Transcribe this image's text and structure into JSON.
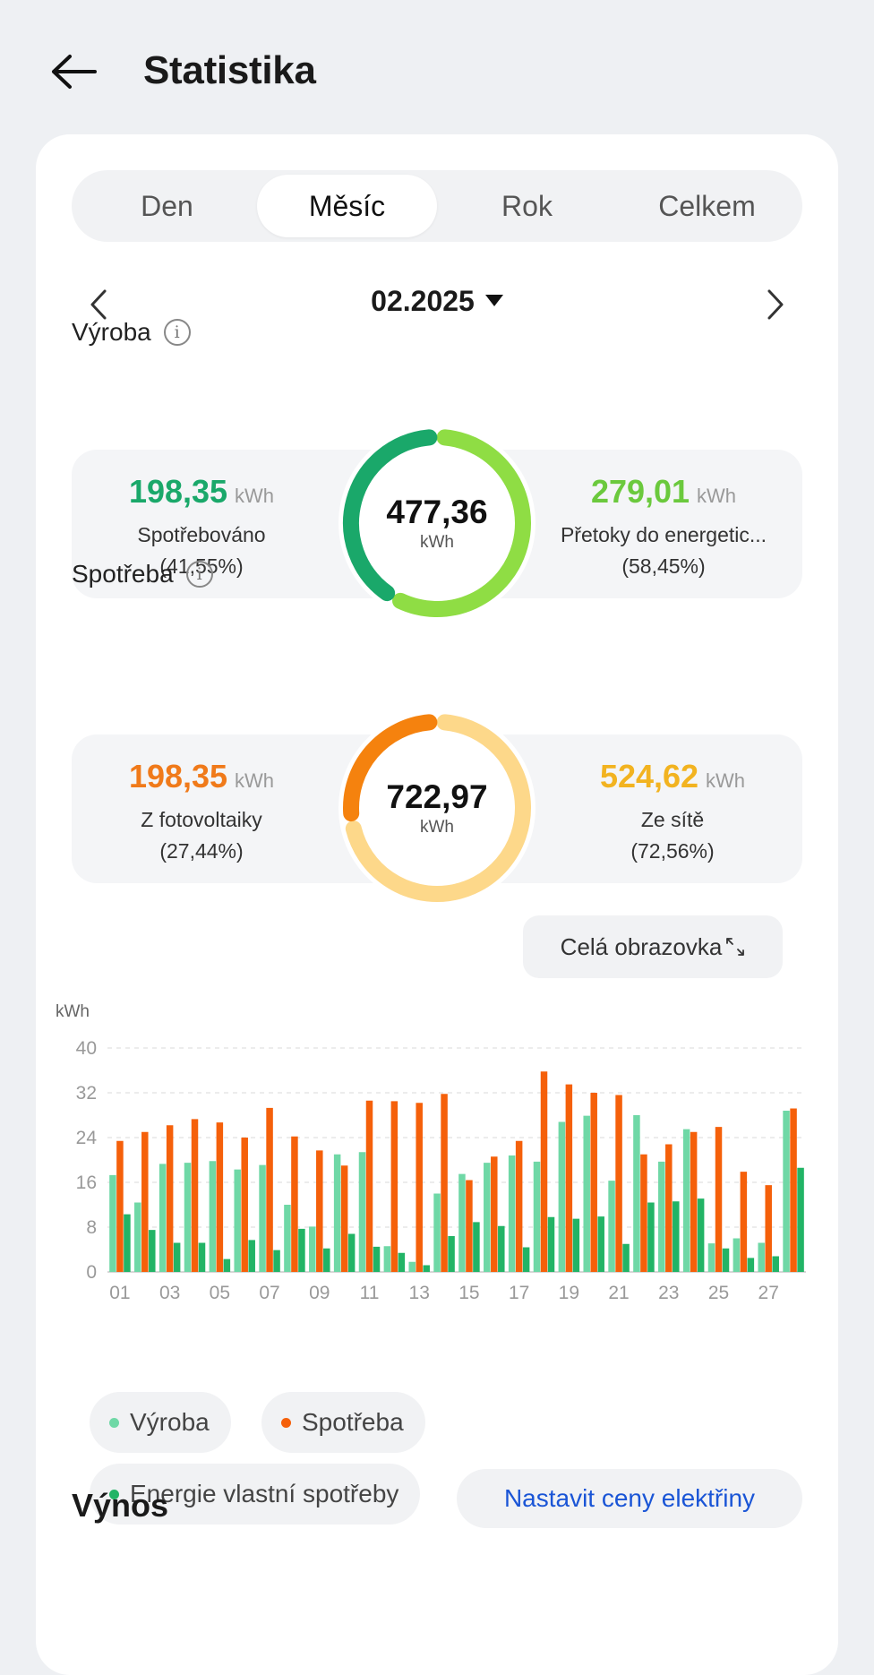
{
  "header": {
    "title": "Statistika",
    "back_icon": "back-arrow-icon"
  },
  "tabs": [
    {
      "label": "Den",
      "active": false
    },
    {
      "label": "Měsíc",
      "active": true
    },
    {
      "label": "Rok",
      "active": false
    },
    {
      "label": "Celkem",
      "active": false
    }
  ],
  "period": {
    "value": "02.2025"
  },
  "production": {
    "section_label": "Výroba",
    "total": "477,36",
    "unit": "kWh",
    "left": {
      "value": "198,35",
      "unit": "kWh",
      "label": "Spotřebováno",
      "percent": "(41,55%)",
      "share": 0.4155,
      "color": "#1aa86a"
    },
    "right": {
      "value": "279,01",
      "unit": "kWh",
      "label": "Přetoky do energetic...",
      "percent": "(58,45%)",
      "share": 0.5845,
      "color": "#6bc93d"
    }
  },
  "consumption": {
    "section_label": "Spotřeba",
    "total": "722,97",
    "unit": "kWh",
    "left": {
      "value": "198,35",
      "unit": "kWh",
      "label": "Z fotovoltaiky",
      "percent": "(27,44%)",
      "share": 0.2744,
      "color": "#f07a1a"
    },
    "right": {
      "value": "524,62",
      "unit": "kWh",
      "label": "Ze sítě",
      "percent": "(72,56%)",
      "share": 0.7256,
      "color": "#f2b320"
    }
  },
  "colors": {
    "production_ring_dark": "#1aa86a",
    "production_ring_light": "#8fdd44",
    "consumption_ring_dark": "#f5820e",
    "consumption_ring_light": "#fdd88a",
    "bar_vyroba": "#6fd8a6",
    "bar_spotreba": "#f5600a",
    "bar_vlastni": "#22b466",
    "link": "#1a55d6"
  },
  "fullscreen_button": {
    "label": "Celá obrazovka"
  },
  "chart_data": {
    "type": "bar",
    "ylabel": "kWh",
    "ylim": [
      0,
      40
    ],
    "yticks": [
      0,
      8,
      16,
      24,
      32,
      40
    ],
    "grid": true,
    "categories": [
      "01",
      "02",
      "03",
      "04",
      "05",
      "06",
      "07",
      "08",
      "09",
      "10",
      "11",
      "12",
      "13",
      "14",
      "15",
      "16",
      "17",
      "18",
      "19",
      "20",
      "21",
      "22",
      "23",
      "24",
      "25",
      "26",
      "27",
      "28"
    ],
    "x_tick_labels": [
      "01",
      "03",
      "05",
      "07",
      "09",
      "11",
      "13",
      "15",
      "17",
      "19",
      "21",
      "23",
      "25",
      "27"
    ],
    "series": [
      {
        "name": "Výroba",
        "values": [
          17.3,
          12.4,
          19.3,
          19.5,
          19.8,
          18.3,
          19.1,
          12.0,
          8.1,
          21.0,
          21.4,
          4.6,
          1.8,
          14.0,
          17.5,
          19.5,
          20.8,
          19.7,
          26.8,
          27.9,
          16.3,
          28.0,
          19.7,
          25.5,
          5.1,
          6.0,
          5.2,
          28.8
        ]
      },
      {
        "name": "Spotřeba",
        "values": [
          23.4,
          25.0,
          26.2,
          27.3,
          26.7,
          24.0,
          29.3,
          24.2,
          21.7,
          19.0,
          30.6,
          30.5,
          30.2,
          31.8,
          16.4,
          20.6,
          23.4,
          35.8,
          33.5,
          32.0,
          31.6,
          21.0,
          22.8,
          25.0,
          25.9,
          17.9,
          15.5,
          29.2
        ]
      },
      {
        "name": "Energie vlastní spotřeby",
        "values": [
          10.3,
          7.5,
          5.2,
          5.2,
          2.3,
          5.7,
          3.9,
          7.7,
          4.2,
          6.8,
          4.5,
          3.4,
          1.2,
          6.4,
          8.9,
          8.2,
          4.4,
          9.8,
          9.5,
          9.9,
          5.0,
          12.4,
          12.6,
          13.1,
          4.2,
          2.5,
          2.8,
          18.6
        ]
      }
    ]
  },
  "legend": [
    {
      "label": "Výroba",
      "color": "#6fd8a6"
    },
    {
      "label": "Spotřeba",
      "color": "#f5600a"
    },
    {
      "label": "Energie vlastní spotřeby",
      "color": "#22b466"
    }
  ],
  "yield": {
    "title": "Výnos",
    "button_label": "Nastavit ceny elektřiny"
  }
}
